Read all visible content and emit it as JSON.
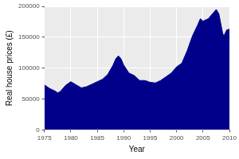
{
  "chart_data": {
    "type": "area",
    "x_label": "Year",
    "y_label": "Real house prices (£)",
    "x": [
      1975,
      1975.5,
      1976,
      1977,
      1977.5,
      1978,
      1979,
      1980,
      1981,
      1982,
      1983,
      1984,
      1985,
      1986,
      1987,
      1988,
      1988.5,
      1989,
      1989.5,
      1990,
      1991,
      1992,
      1993,
      1994,
      1995,
      1996,
      1997,
      1998,
      1999,
      2000,
      2001,
      2002,
      2003,
      2004,
      2004.5,
      2005,
      2006,
      2007,
      2007.5,
      2008,
      2008.75,
      2009,
      2009.5,
      2010
    ],
    "values": [
      73000,
      70000,
      67000,
      63000,
      60000,
      62000,
      72000,
      78000,
      73000,
      68000,
      70000,
      74000,
      78000,
      82000,
      90000,
      105000,
      115000,
      120000,
      115000,
      105000,
      92000,
      88000,
      80000,
      80000,
      77000,
      76000,
      80000,
      86000,
      92000,
      102000,
      108000,
      128000,
      152000,
      170000,
      180000,
      176000,
      180000,
      190000,
      195000,
      188000,
      155000,
      153000,
      162000,
      163000
    ],
    "color": "#00008b",
    "xlim": [
      1975,
      2010
    ],
    "xticks": [
      1975,
      1980,
      1985,
      1990,
      1995,
      2000,
      2005,
      2010
    ],
    "ylim": [
      0,
      200000
    ],
    "yticks": [
      0,
      50000,
      100000,
      150000,
      200000
    ],
    "grid": true
  }
}
